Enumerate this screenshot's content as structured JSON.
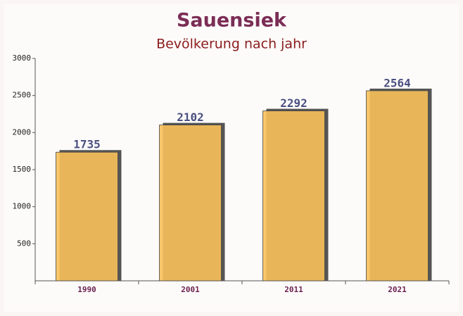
{
  "chart_data": {
    "type": "bar",
    "title": "Sauensiek",
    "subtitle": "Bevölkerung nach jahr",
    "categories": [
      "1990",
      "2001",
      "2011",
      "2021"
    ],
    "values": [
      1735,
      2102,
      2292,
      2564
    ],
    "color": "#f8c15a",
    "ylim": [
      0,
      3000
    ],
    "yticks": [
      500,
      1000,
      1500,
      2000,
      2500,
      3000
    ]
  }
}
